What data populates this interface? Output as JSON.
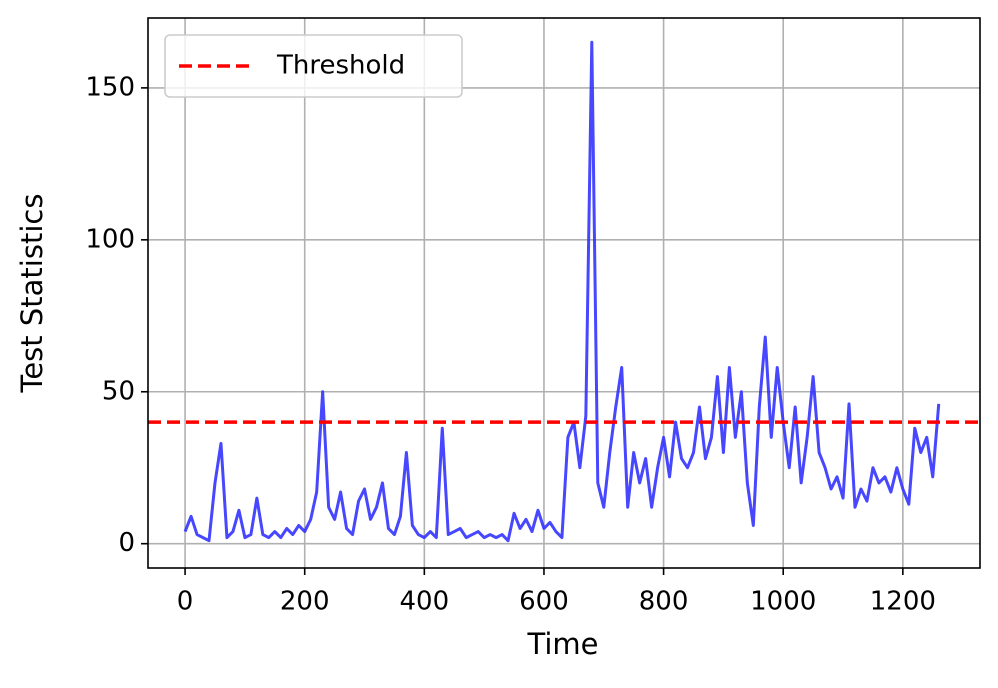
{
  "chart_data": {
    "type": "line",
    "xlabel": "Time",
    "ylabel": "Test Statistics",
    "x": [
      0,
      10,
      20,
      30,
      40,
      50,
      60,
      70,
      80,
      90,
      100,
      110,
      120,
      130,
      140,
      150,
      160,
      170,
      180,
      190,
      200,
      210,
      220,
      230,
      240,
      250,
      260,
      270,
      280,
      290,
      300,
      310,
      320,
      330,
      340,
      350,
      360,
      370,
      380,
      390,
      400,
      410,
      420,
      430,
      440,
      450,
      460,
      470,
      480,
      490,
      500,
      510,
      520,
      530,
      540,
      550,
      560,
      570,
      580,
      590,
      600,
      610,
      620,
      630,
      640,
      650,
      660,
      670,
      680,
      690,
      700,
      710,
      720,
      730,
      740,
      750,
      760,
      770,
      780,
      790,
      800,
      810,
      820,
      830,
      840,
      850,
      860,
      870,
      880,
      890,
      900,
      910,
      920,
      930,
      940,
      950,
      960,
      970,
      980,
      990,
      1000,
      1010,
      1020,
      1030,
      1040,
      1050,
      1060,
      1070,
      1080,
      1090,
      1100,
      1110,
      1120,
      1130,
      1140,
      1150,
      1160,
      1170,
      1180,
      1190,
      1200,
      1210,
      1220,
      1230,
      1240,
      1250,
      1260
    ],
    "series": [
      {
        "color": "#3333ff",
        "values": [
          4,
          9,
          3,
          2,
          1,
          20,
          33,
          2,
          4,
          11,
          2,
          3,
          15,
          3,
          2,
          4,
          2,
          5,
          3,
          6,
          4,
          8,
          17,
          50,
          12,
          8,
          17,
          5,
          3,
          14,
          18,
          8,
          12,
          20,
          5,
          3,
          9,
          30,
          6,
          3,
          2,
          4,
          2,
          38,
          3,
          4,
          5,
          2,
          3,
          4,
          2,
          3,
          2,
          3,
          1,
          10,
          5,
          8,
          4,
          11,
          5,
          7,
          4,
          2,
          35,
          40,
          25,
          42,
          165,
          20,
          12,
          30,
          45,
          58,
          12,
          30,
          20,
          28,
          12,
          25,
          35,
          22,
          40,
          28,
          25,
          30,
          45,
          28,
          35,
          55,
          30,
          58,
          35,
          50,
          20,
          6,
          45,
          68,
          35,
          58,
          40,
          25,
          45,
          20,
          35,
          55,
          30,
          25,
          18,
          22,
          15,
          46,
          12,
          18,
          14,
          25,
          20,
          22,
          17,
          25,
          18,
          13,
          38,
          30,
          35,
          22,
          46
        ]
      }
    ],
    "hlines": [
      {
        "name": "Threshold",
        "value": 40,
        "color": "#ff0000",
        "style": "dashed"
      }
    ],
    "xlim": [
      -62,
      1329
    ],
    "ylim": [
      -8,
      173
    ],
    "xticks": [
      0,
      200,
      400,
      600,
      800,
      1000,
      1200
    ],
    "yticks": [
      0,
      50,
      100,
      150
    ],
    "grid": true,
    "legend": "upper left"
  }
}
